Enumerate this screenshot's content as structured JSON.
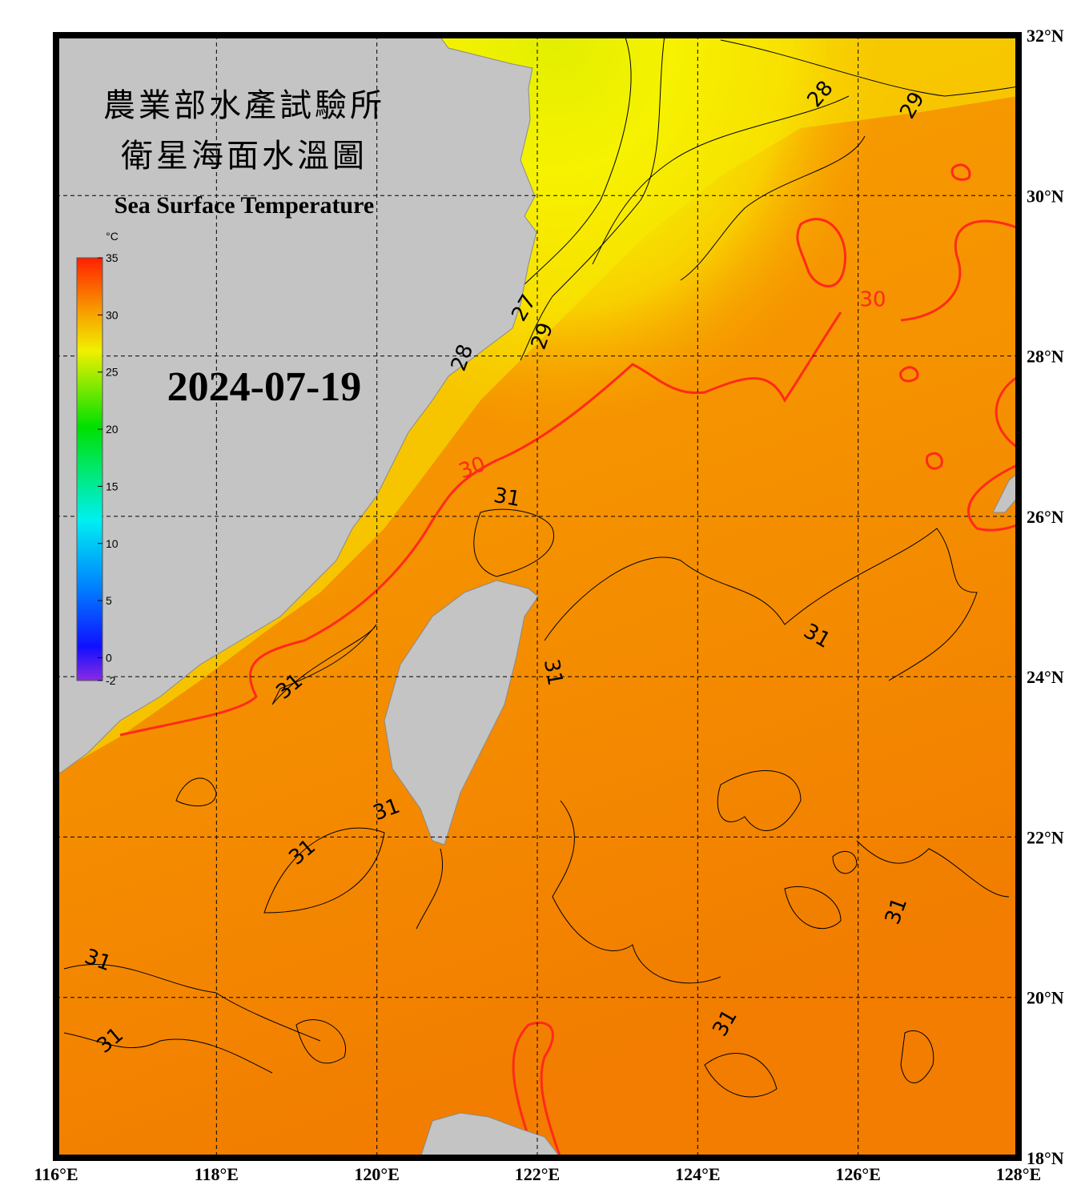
{
  "map": {
    "title": "農業部水產試驗所",
    "title2": "衛星海面水溫圖",
    "subtitle": "Sea Surface Temperature",
    "date": "2024-07-19",
    "colorbar": {
      "unit": "°C",
      "lim": [
        -2,
        35
      ],
      "ticks": [
        35,
        30,
        25,
        20,
        15,
        10,
        5,
        0,
        -2
      ]
    },
    "xlim": [
      116,
      128
    ],
    "ylim": [
      18,
      32
    ],
    "xticks": [
      {
        "value": 116,
        "label": "116°E"
      },
      {
        "value": 118,
        "label": "118°E"
      },
      {
        "value": 120,
        "label": "120°E"
      },
      {
        "value": 122,
        "label": "122°E"
      },
      {
        "value": 124,
        "label": "124°E"
      },
      {
        "value": 126,
        "label": "126°E"
      },
      {
        "value": 128,
        "label": "128°E"
      }
    ],
    "yticks": [
      {
        "value": 18,
        "label": "18°N"
      },
      {
        "value": 20,
        "label": "20°N"
      },
      {
        "value": 22,
        "label": "22°N"
      },
      {
        "value": 24,
        "label": "24°N"
      },
      {
        "value": 26,
        "label": "26°N"
      },
      {
        "value": 28,
        "label": "28°N"
      },
      {
        "value": 30,
        "label": "30°N"
      },
      {
        "value": 32,
        "label": "32°N"
      }
    ],
    "grid": true,
    "contour_labels": [
      {
        "text": "28",
        "color": "#000000"
      },
      {
        "text": "29",
        "color": "#000000"
      },
      {
        "text": "27",
        "color": "#000000"
      },
      {
        "text": "29",
        "color": "#000000"
      },
      {
        "text": "28",
        "color": "#000000"
      },
      {
        "text": "30",
        "color": "#ff2a1a"
      },
      {
        "text": "30",
        "color": "#ff2a1a"
      },
      {
        "text": "31",
        "color": "#000000"
      },
      {
        "text": "31",
        "color": "#000000"
      },
      {
        "text": "31",
        "color": "#000000"
      },
      {
        "text": "31",
        "color": "#000000"
      },
      {
        "text": "31",
        "color": "#000000"
      },
      {
        "text": "31",
        "color": "#000000"
      },
      {
        "text": "31",
        "color": "#000000"
      },
      {
        "text": "31",
        "color": "#000000"
      },
      {
        "text": "31",
        "color": "#000000"
      },
      {
        "text": "31",
        "color": "#000000"
      }
    ]
  }
}
